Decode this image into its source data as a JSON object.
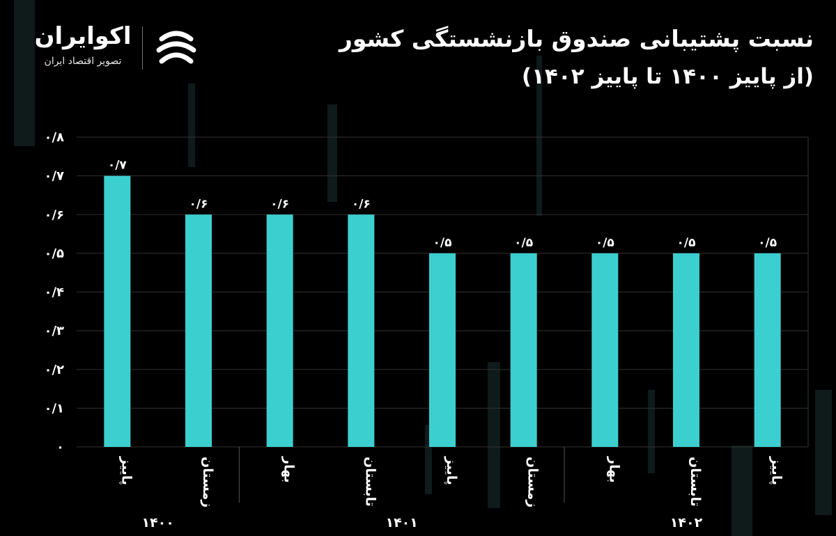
{
  "header": {
    "title": "نسبت پشتیبانی صندوق بازنشستگی کشور",
    "subtitle": "(از پاییز ۱۴۰۰ تا پاییز ۱۴۰۲)"
  },
  "logo": {
    "name": "اکوایران",
    "tagline": "تصویر اقتصاد ایران",
    "mark_icon": "ecoiran-logo-mark-icon"
  },
  "colors": {
    "bar": "#3ccfd0",
    "background": "#000000",
    "text": "#ffffff",
    "grid": "#333333"
  },
  "chart_data": {
    "type": "bar",
    "categories": [
      "پاییز",
      "زمستان",
      "بهار",
      "تابستان",
      "پاییز",
      "زمستان",
      "بهار",
      "تابستان",
      "پاییز"
    ],
    "values": [
      0.7,
      0.6,
      0.6,
      0.6,
      0.5,
      0.5,
      0.5,
      0.5,
      0.5
    ],
    "value_labels": [
      "۰/۷",
      "۰/۶",
      "۰/۶",
      "۰/۶",
      "۰/۵",
      "۰/۵",
      "۰/۵",
      "۰/۵",
      "۰/۵"
    ],
    "yticks": [
      0,
      0.1,
      0.2,
      0.3,
      0.4,
      0.5,
      0.6,
      0.7,
      0.8
    ],
    "ytick_labels": [
      "۰",
      "۰/۱",
      "۰/۲",
      "۰/۳",
      "۰/۴",
      "۰/۵",
      "۰/۶",
      "۰/۷",
      "۰/۸"
    ],
    "ylim": [
      0,
      0.8
    ],
    "groups": [
      {
        "label": "۱۴۰۰",
        "start": 0,
        "end": 1
      },
      {
        "label": "۱۴۰۱",
        "start": 2,
        "end": 5
      },
      {
        "label": "۱۴۰۲",
        "start": 6,
        "end": 8
      }
    ],
    "grid": true,
    "legend": "none"
  }
}
